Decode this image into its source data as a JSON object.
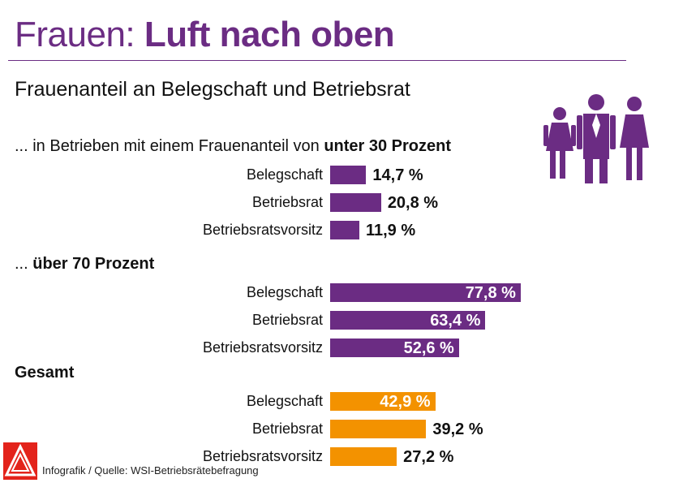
{
  "title_light": "Frauen:",
  "title_bold": "Luft nach oben",
  "subtitle": "Frauenanteil an Belegschaft und Betriebsrat",
  "source": "Infografik / Quelle: WSI-Betriebsrätebefragung",
  "colors": {
    "purple": "#6b2c83",
    "orange": "#f39200",
    "logo_red": "#e3231b"
  },
  "icons": [
    "women-group-icon",
    "ig-metall-logo-icon"
  ],
  "chart_data": {
    "type": "bar",
    "orientation": "horizontal",
    "unit": "%",
    "xlim": [
      0,
      100
    ],
    "grid": false,
    "legend": "none",
    "groups": [
      {
        "label_prefix": "... in Betrieben mit einem Frauenanteil von ",
        "label_bold": "unter 30 Prozent",
        "color": "#6b2c83",
        "categories": [
          "Belegschaft",
          "Betriebsrat",
          "Betriebsratsvorsitz"
        ],
        "values": [
          14.7,
          20.8,
          11.9
        ],
        "labels": [
          "14,7 %",
          "20,8 %",
          "11,9 %"
        ]
      },
      {
        "label_prefix": "... ",
        "label_bold": "über 70 Prozent",
        "color": "#6b2c83",
        "categories": [
          "Belegschaft",
          "Betriebsrat",
          "Betriebsratsvorsitz"
        ],
        "values": [
          77.8,
          63.4,
          52.6
        ],
        "labels": [
          "77,8 %",
          "63,4 %",
          "52,6 %"
        ]
      },
      {
        "label_prefix": "",
        "label_bold": "Gesamt",
        "color": "#f39200",
        "categories": [
          "Belegschaft",
          "Betriebsrat",
          "Betriebsratsvorsitz"
        ],
        "values": [
          42.9,
          39.2,
          27.2
        ],
        "labels": [
          "42,9 %",
          "39,2 %",
          "27,2 %"
        ]
      }
    ]
  }
}
